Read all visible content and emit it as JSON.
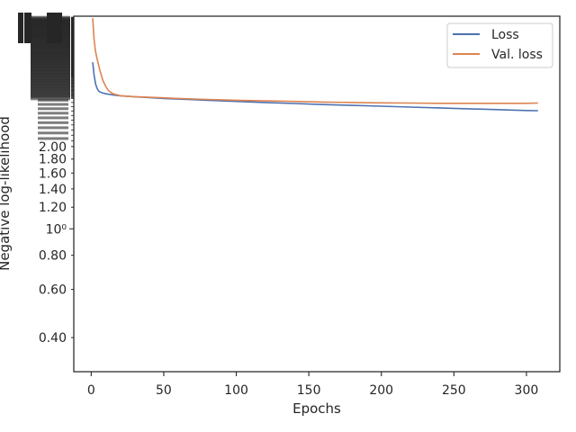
{
  "chart_data": {
    "type": "line",
    "xlabel": "Epochs",
    "ylabel": "Negative log-likelihood",
    "xlim": [
      -12,
      323
    ],
    "ylim": [
      0.3,
      6.0
    ],
    "yscale": "log",
    "grid": false,
    "legend_position": "top-right",
    "xticks": [
      0,
      50,
      100,
      150,
      200,
      250,
      300
    ],
    "xtick_labels": [
      "0",
      "50",
      "100",
      "150",
      "200",
      "250",
      "300"
    ],
    "yticks": [
      0.4,
      0.6,
      0.8,
      1.0,
      1.2,
      1.4,
      1.6,
      1.8,
      2.0
    ],
    "ytick_labels": [
      "0.40",
      "0.60",
      "0.80",
      "10⁰",
      "1.20",
      "1.40",
      "1.60",
      "1.80",
      "2.00"
    ],
    "series": [
      {
        "name": "Loss",
        "color": "#4c72b0",
        "x": [
          1,
          2,
          3,
          4,
          5,
          6,
          8,
          10,
          15,
          20,
          30,
          40,
          50,
          60,
          70,
          80,
          90,
          100,
          120,
          140,
          160,
          180,
          200,
          220,
          240,
          250,
          260,
          270,
          280,
          290,
          300,
          308
        ],
        "y": [
          4.07,
          3.64,
          3.39,
          3.27,
          3.2,
          3.17,
          3.14,
          3.12,
          3.09,
          3.07,
          3.04,
          3.02,
          3.0,
          2.985,
          2.97,
          2.955,
          2.94,
          2.925,
          2.9,
          2.875,
          2.85,
          2.83,
          2.81,
          2.79,
          2.77,
          2.76,
          2.75,
          2.74,
          2.73,
          2.72,
          2.71,
          2.705
        ]
      },
      {
        "name": "Val. loss",
        "color": "#dd8452",
        "x": [
          1,
          2,
          3,
          4,
          6,
          8,
          10,
          12,
          15,
          20,
          30,
          40,
          50,
          60,
          80,
          100,
          120,
          140,
          160,
          180,
          200,
          220,
          240,
          260,
          280,
          300,
          308
        ],
        "y": [
          5.9,
          4.9,
          4.45,
          4.2,
          3.8,
          3.5,
          3.32,
          3.2,
          3.12,
          3.07,
          3.045,
          3.03,
          3.015,
          3.0,
          2.975,
          2.955,
          2.94,
          2.925,
          2.91,
          2.9,
          2.89,
          2.885,
          2.88,
          2.88,
          2.88,
          2.88,
          2.885
        ]
      }
    ]
  }
}
